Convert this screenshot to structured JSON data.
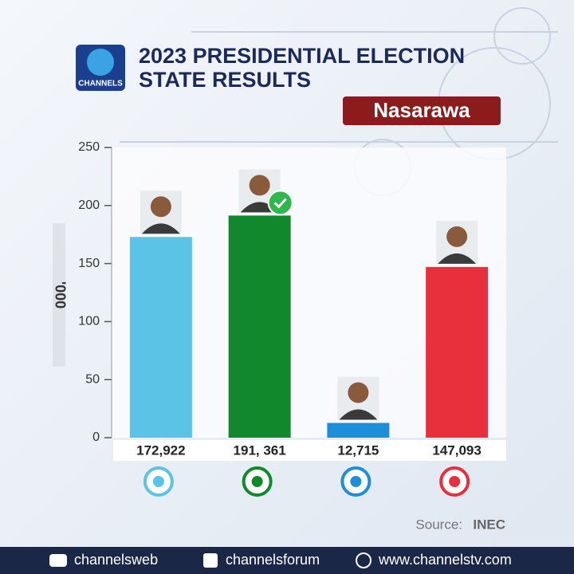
{
  "brand": "CHANNELS",
  "chart_data": {
    "type": "bar",
    "title_lines": [
      "2023 PRESIDENTIAL ELECTION",
      "STATE RESULTS"
    ],
    "subtitle": "Nasarawa",
    "y_label": "'000",
    "values": [
      172.922,
      191.361,
      12.715,
      147.093
    ],
    "value_labels": [
      "172,922",
      "191, 361",
      "12,715",
      "147,093"
    ],
    "colors": [
      "#5bc4e6",
      "#12882d",
      "#1c8fd8",
      "#e8303c"
    ],
    "ylim": [
      0,
      250
    ],
    "yticks": [
      0,
      50,
      100,
      150,
      200,
      250
    ],
    "source_label": "Source:",
    "source": "INEC"
  },
  "footer": [
    "channelsweb",
    "channelsforum",
    "www.channelstv.com"
  ]
}
